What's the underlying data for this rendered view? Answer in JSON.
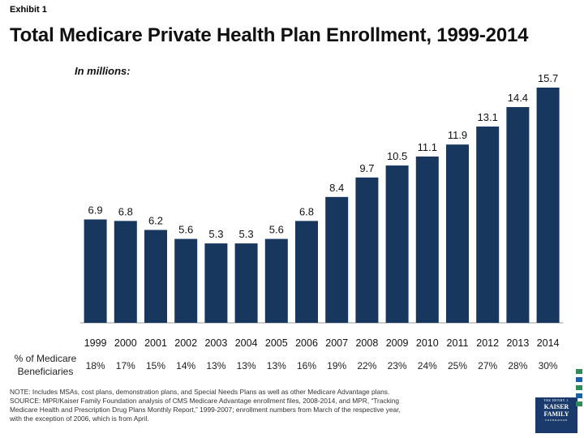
{
  "header": {
    "exhibit": "Exhibit 1",
    "title": "Total Medicare Private Health Plan Enrollment, 1999-2014",
    "units": "In millions:"
  },
  "chart_data": {
    "type": "bar",
    "categories": [
      "1999",
      "2000",
      "2001",
      "2002",
      "2003",
      "2004",
      "2005",
      "2006",
      "2007",
      "2008",
      "2009",
      "2010",
      "2011",
      "2012",
      "2013",
      "2014"
    ],
    "values": [
      6.9,
      6.8,
      6.2,
      5.6,
      5.3,
      5.3,
      5.6,
      6.8,
      8.4,
      9.7,
      10.5,
      11.1,
      11.9,
      13.1,
      14.4,
      15.7
    ],
    "value_labels": [
      "6.9",
      "6.8",
      "6.2",
      "5.6",
      "5.3",
      "5.3",
      "5.6",
      "6.8",
      "8.4",
      "9.7",
      "10.5",
      "11.1",
      "11.9",
      "13.1",
      "14.4",
      "15.7"
    ],
    "title": "Total Medicare Private Health Plan Enrollment, 1999-2014",
    "ylabel": "In millions",
    "ylim": [
      0,
      15.7
    ],
    "bar_color": "#17375e",
    "grid": false
  },
  "percent_row": {
    "label": "% of Medicare Beneficiaries",
    "values": [
      "18%",
      "17%",
      "15%",
      "14%",
      "13%",
      "13%",
      "13%",
      "16%",
      "19%",
      "22%",
      "23%",
      "24%",
      "25%",
      "27%",
      "28%",
      "30%"
    ]
  },
  "footer": {
    "note": "NOTE:  Includes MSAs, cost plans, demonstration plans, and Special Needs Plans as well as other Medicare Advantage plans.",
    "source_1": "SOURCE:  MPR/Kaiser Family Foundation analysis of CMS Medicare Advantage enrollment files, 2008-2014, and MPR, “Tracking",
    "source_2": "Medicare Health and Prescription Drug Plans Monthly Report,” 1999-2007; enrollment numbers from March of the respective year,",
    "source_3": "with the exception of 2006, which is from April."
  },
  "logo": {
    "line1": "THE HENRY J.",
    "line2": "KAISER",
    "line3": "FAMILY",
    "line4": "FOUNDATION"
  }
}
